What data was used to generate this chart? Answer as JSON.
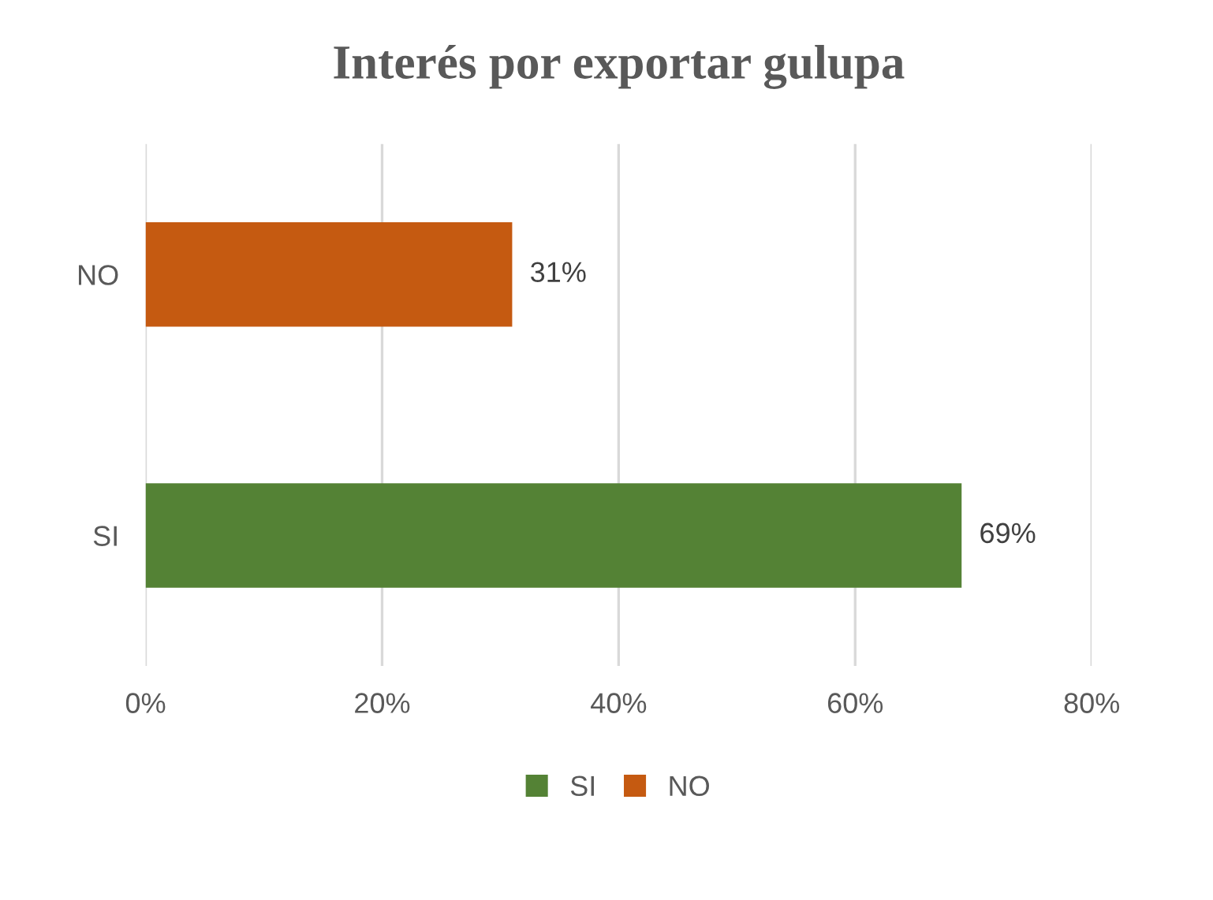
{
  "chart_data": {
    "type": "bar",
    "orientation": "horizontal",
    "title": "Interés por exportar gulupa",
    "categories": [
      "NO",
      "SI"
    ],
    "series": [
      {
        "name": "SI",
        "color": "#548235",
        "values": [
          null,
          69
        ],
        "value_labels": [
          null,
          "69%"
        ]
      },
      {
        "name": "NO",
        "color": "#c55a11",
        "values": [
          31,
          null
        ],
        "value_labels": [
          "31%",
          null
        ]
      }
    ],
    "xlim": [
      0,
      80
    ],
    "xticks": [
      {
        "value": 0,
        "label": "0%"
      },
      {
        "value": 20,
        "label": "20%"
      },
      {
        "value": 40,
        "label": "40%"
      },
      {
        "value": 60,
        "label": "60%"
      },
      {
        "value": 80,
        "label": "80%"
      }
    ],
    "grid": "x",
    "legend": "bottom"
  }
}
